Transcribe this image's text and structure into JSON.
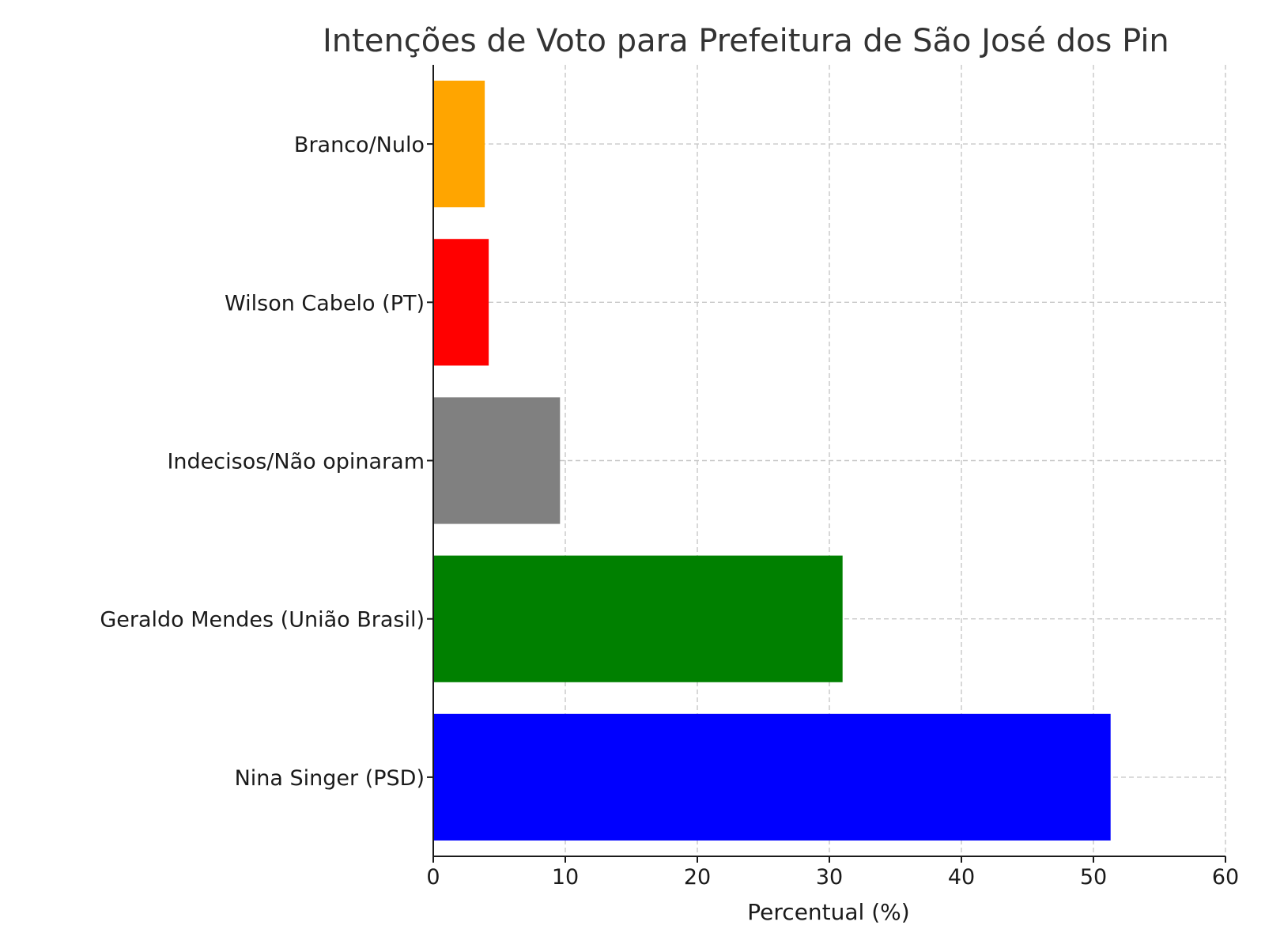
{
  "chart_data": {
    "type": "bar",
    "orientation": "horizontal",
    "title": "Intenções de Voto para Prefeitura de São José dos Pin",
    "xlabel": "Percentual (%)",
    "ylabel": "",
    "xlim": [
      0,
      60
    ],
    "xticks": [
      "0",
      "10",
      "20",
      "30",
      "40",
      "50",
      "60"
    ],
    "grid": true,
    "categories": [
      "Nina Singer (PSD)",
      "Geraldo Mendes (União Brasil)",
      "Indecisos/Não opinaram",
      "Wilson Cabelo (PT)",
      "Branco/Nulo"
    ],
    "values": [
      51.3,
      31.0,
      9.6,
      4.2,
      3.9
    ],
    "colors": [
      "#0000ff",
      "#008000",
      "#808080",
      "#ff0000",
      "#ffa500"
    ]
  }
}
